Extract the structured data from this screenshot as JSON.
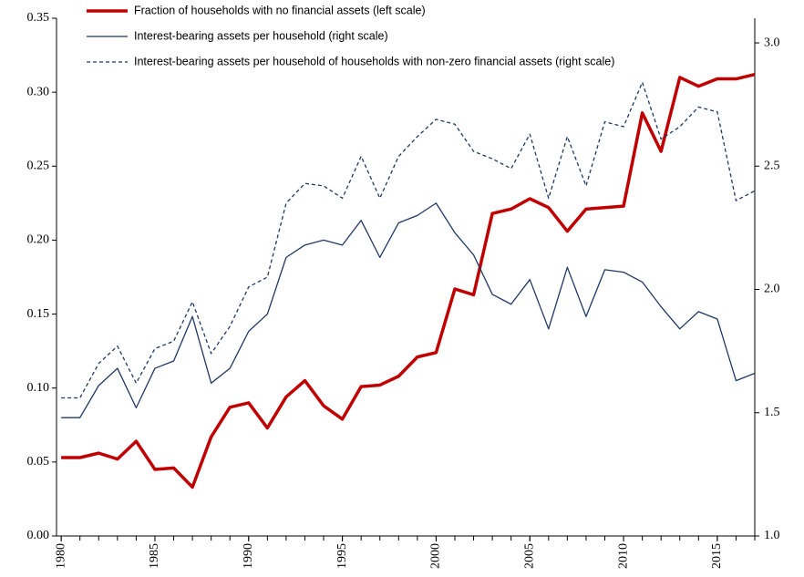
{
  "chart_data": {
    "type": "line",
    "x": [
      1980,
      1981,
      1982,
      1983,
      1984,
      1985,
      1986,
      1987,
      1988,
      1989,
      1990,
      1991,
      1992,
      1993,
      1994,
      1995,
      1996,
      1997,
      1998,
      1999,
      2000,
      2001,
      2002,
      2003,
      2004,
      2005,
      2006,
      2007,
      2008,
      2009,
      2010,
      2011,
      2012,
      2013,
      2014,
      2015,
      2016,
      2017
    ],
    "xlim": [
      1979.75,
      2017
    ],
    "xticks": [
      1980,
      1985,
      1990,
      1995,
      2000,
      2005,
      2010,
      2015
    ],
    "ylim": [
      0,
      0.35
    ],
    "yticks": [
      {
        "value": 0,
        "label": "0.00"
      },
      {
        "value": 0.05,
        "label": "0.05"
      },
      {
        "value": 0.1,
        "label": "0.10"
      },
      {
        "value": 0.15,
        "label": "0.15"
      },
      {
        "value": 0.2,
        "label": "0.20"
      },
      {
        "value": 0.25,
        "label": "0.25"
      },
      {
        "value": 0.3,
        "label": "0.30"
      },
      {
        "value": 0.35,
        "label": "0.35"
      }
    ],
    "y2lim": [
      1.0,
      3.1
    ],
    "y2ticks": [
      {
        "value": 1,
        "label": "1.0"
      },
      {
        "value": 1.5,
        "label": "1.5"
      },
      {
        "value": 2,
        "label": "2.0"
      },
      {
        "value": 2.5,
        "label": "2.5"
      },
      {
        "value": 3,
        "label": "3.0"
      }
    ],
    "grid": false,
    "series": [
      {
        "name": "Fraction of households with no financial assets (left scale)",
        "color": "#c00000",
        "linewidth": 3.5,
        "linestyle": "solid",
        "values": [
          0.053,
          0.053,
          0.056,
          0.052,
          0.064,
          0.045,
          0.046,
          0.033,
          0.067,
          0.087,
          0.09,
          0.073,
          0.094,
          0.105,
          0.088,
          0.079,
          0.101,
          0.102,
          0.108,
          0.121,
          0.124,
          0.167,
          0.163,
          0.218,
          0.221,
          0.228,
          0.222,
          0.206,
          0.221,
          0.222,
          0.223,
          0.286,
          0.26,
          0.31,
          0.304,
          0.309,
          0.309,
          0.312
        ]
      },
      {
        "name": "Interest-bearing assets per household (right scale)",
        "color": "#1f3864",
        "linewidth": 1.3,
        "linestyle": "solid",
        "axis": "y2",
        "values": [
          1.48,
          1.48,
          1.61,
          1.68,
          1.52,
          1.68,
          1.71,
          1.89,
          1.62,
          1.68,
          1.83,
          1.9,
          2.13,
          2.18,
          2.2,
          2.18,
          2.28,
          2.13,
          2.27,
          2.3,
          2.35,
          2.23,
          2.14,
          1.98,
          1.94,
          2.04,
          1.84,
          2.09,
          1.89,
          2.08,
          2.07,
          2.03,
          1.93,
          1.84,
          1.91,
          1.88,
          1.63,
          1.66
        ]
      },
      {
        "name": "Interest-bearing assets per household of households with non-zero financial assets (right scale)",
        "color": "#1f3864",
        "linewidth": 1.3,
        "linestyle": "dashed",
        "axis": "y2",
        "values": [
          1.56,
          1.56,
          1.7,
          1.77,
          1.62,
          1.76,
          1.79,
          1.95,
          1.74,
          1.85,
          2.01,
          2.05,
          2.35,
          2.43,
          2.42,
          2.37,
          2.54,
          2.37,
          2.54,
          2.62,
          2.69,
          2.67,
          2.56,
          2.53,
          2.49,
          2.63,
          2.37,
          2.62,
          2.42,
          2.68,
          2.66,
          2.84,
          2.61,
          2.66,
          2.74,
          2.72,
          2.36,
          2.4
        ]
      }
    ]
  }
}
